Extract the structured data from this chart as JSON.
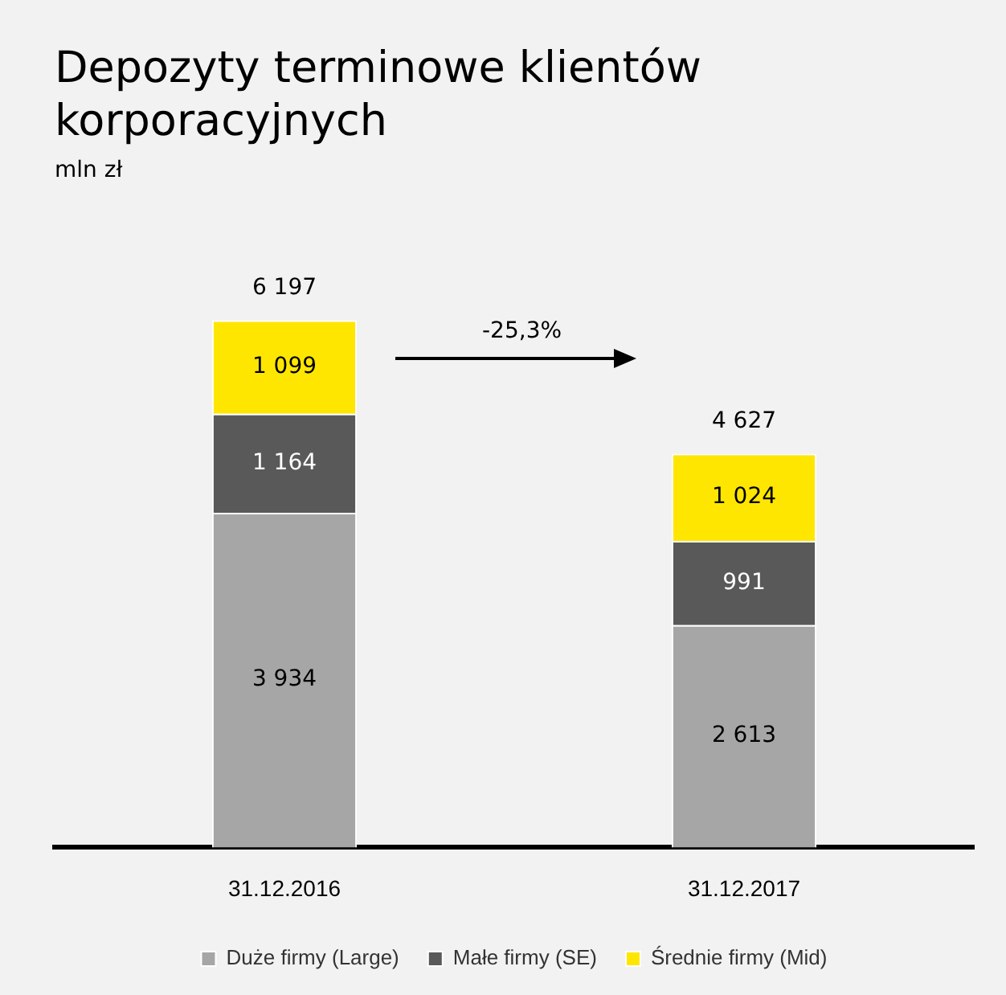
{
  "chart_data": {
    "type": "bar",
    "title": "Depozyty terminowe klientów korporacyjnych",
    "subtitle": "mln zł",
    "categories": [
      "31.12.2016",
      "31.12.2017"
    ],
    "stacked": true,
    "legend": "bottom",
    "series": [
      {
        "name": "Duże firmy (Large)",
        "color": "#a6a6a6",
        "values": [
          3934,
          2613
        ],
        "value_labels": [
          "3 934",
          "2 613"
        ]
      },
      {
        "name": "Małe firmy (SE)",
        "color": "#595959",
        "values": [
          1164,
          991
        ],
        "value_labels": [
          "1 164",
          "991"
        ]
      },
      {
        "name": "Średnie firmy (Mid)",
        "color": "#ffe600",
        "values": [
          1099,
          1024
        ],
        "value_labels": [
          "1 099",
          "1 024"
        ]
      }
    ],
    "totals": [
      "6 197",
      "4 627"
    ],
    "annotations": [
      "-25,3%"
    ]
  }
}
